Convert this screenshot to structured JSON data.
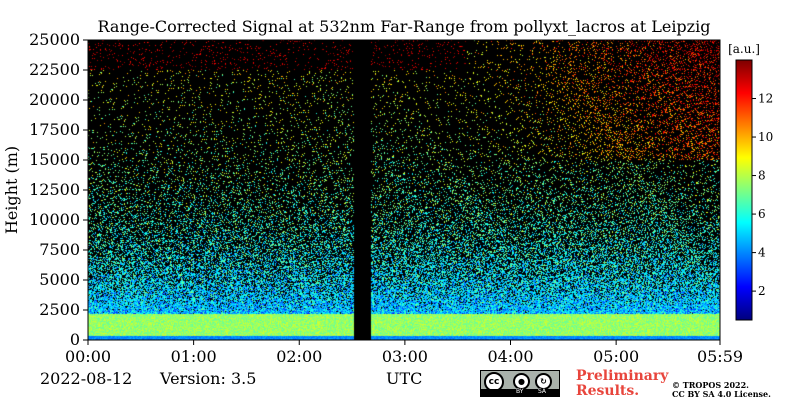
{
  "chart_data": {
    "type": "heatmap",
    "title": "Range-Corrected Signal at 532nm Far-Range from pollyxt_lacros at Leipzig",
    "ylabel": "Height (m)",
    "xlabel": "UTC",
    "x_ticks": [
      "00:00",
      "01:00",
      "02:00",
      "03:00",
      "04:00",
      "05:00",
      "05:59"
    ],
    "y_ticks": [
      0,
      2500,
      5000,
      7500,
      10000,
      12500,
      15000,
      17500,
      20000,
      22500,
      25000
    ],
    "ylim": [
      0,
      25000
    ],
    "xlim": [
      "00:00",
      "05:59"
    ],
    "colorbar": {
      "label": "[a.u.]",
      "ticks": [
        2,
        4,
        6,
        8,
        10,
        12
      ],
      "range": [
        0.5,
        14
      ],
      "colormap": "jet"
    },
    "no_data_interval": [
      "02:31",
      "02:41"
    ],
    "grid": false
  },
  "footer": {
    "date": "2022-08-12",
    "version": "Version: 3.5",
    "preliminary_line1": "Preliminary",
    "preliminary_line2": "Results.",
    "copyright_line1": "© TROPOS 2022.",
    "copyright_line2": "CC BY SA 4.0 License."
  },
  "license_badge": {
    "symbol": "cc",
    "by": "BY",
    "sa": "SA"
  },
  "colors": {
    "prelim": "#e8453c",
    "background": "#000000"
  }
}
